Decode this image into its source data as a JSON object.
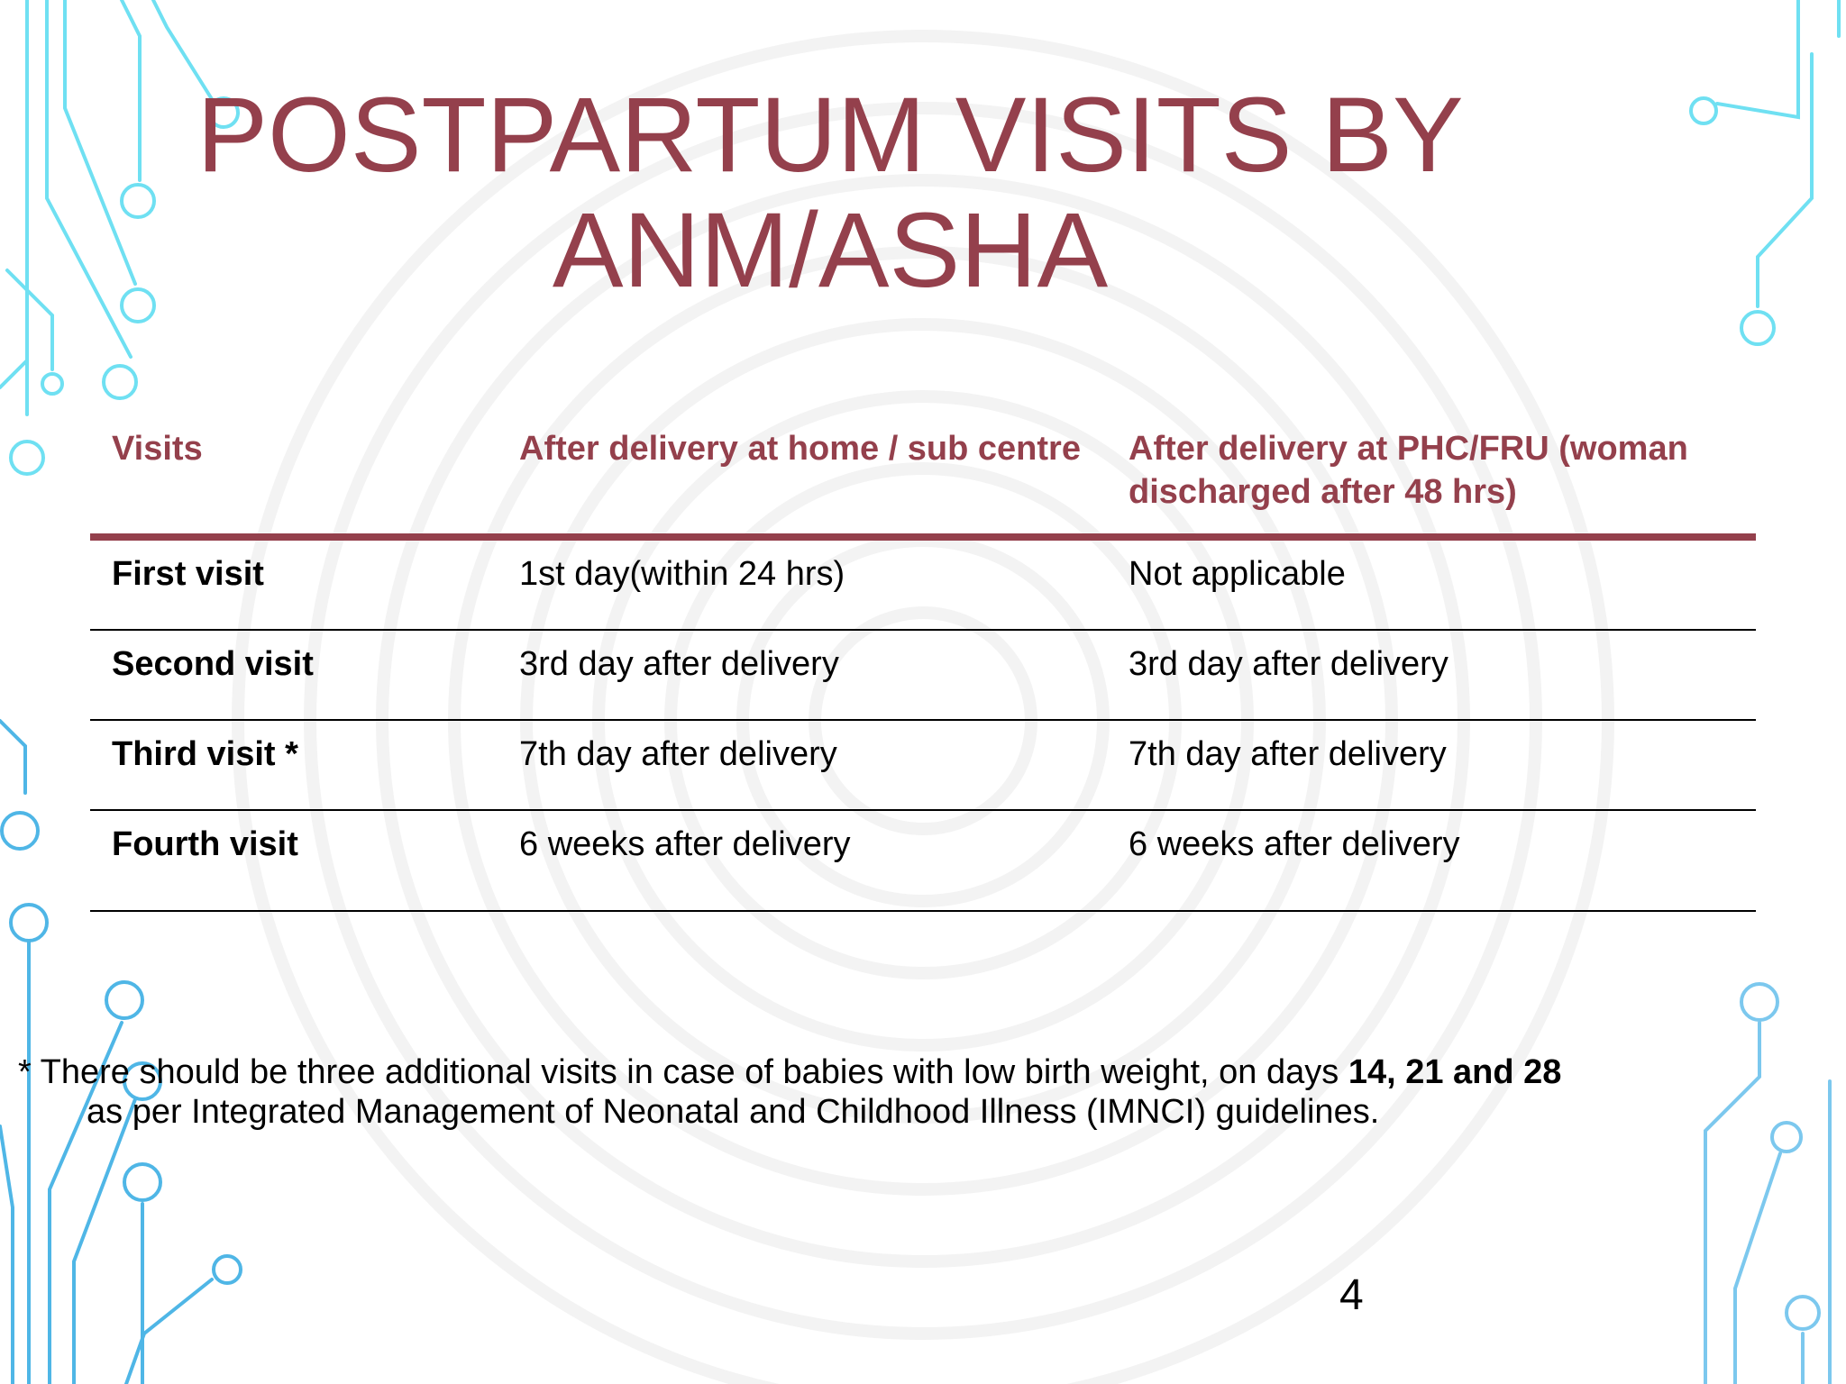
{
  "slide": {
    "title_line1": "POSTPARTUM VISITS BY",
    "title_line2": "ANM/ASHA",
    "page_number": "4"
  },
  "table": {
    "headers": [
      "Visits",
      "After delivery at home / sub centre",
      "After delivery at PHC/FRU (woman discharged after 48 hrs)"
    ],
    "rows": [
      [
        "First visit",
        "1st day(within 24 hrs)",
        "Not applicable"
      ],
      [
        "Second visit",
        "3rd day after delivery",
        "3rd day after delivery"
      ],
      [
        "Third visit *",
        "7th day after delivery",
        "7th day after delivery"
      ],
      [
        "Fourth visit",
        "6 weeks after delivery",
        "6 weeks after delivery"
      ]
    ]
  },
  "footnote": {
    "part1": "* There should be three additional visits in  case of babies with low birth weight, on days ",
    "bold_days": "14, 21 and 28",
    "part2": "as per Integrated Management of Neonatal and Childhood Illness (IMNCI) guidelines."
  },
  "colors": {
    "title": "#94404c",
    "header_text": "#94404c",
    "header_rule": "#94404c",
    "circuit_light": "#6fe0f2",
    "circuit_dark": "#3f9ad8"
  }
}
